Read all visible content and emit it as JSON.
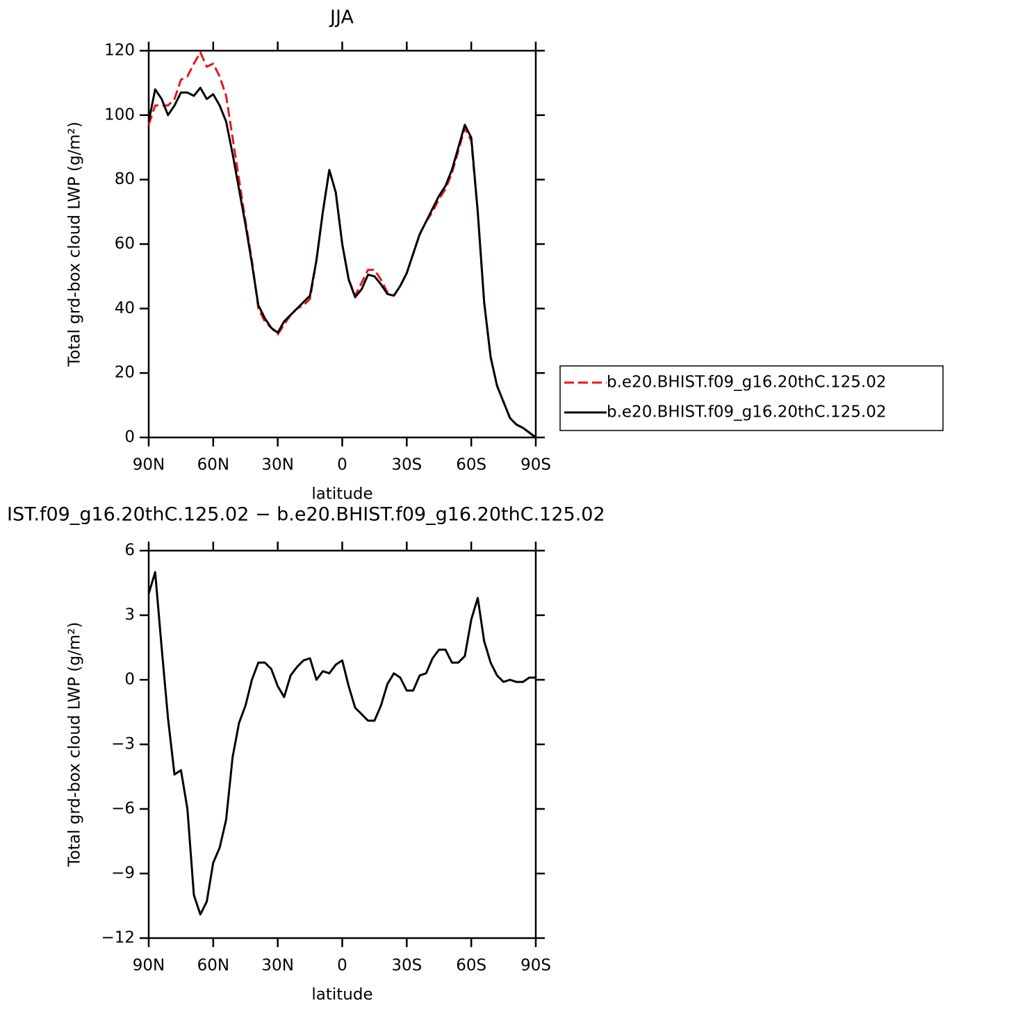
{
  "chart_data": [
    {
      "type": "line",
      "title": "JJA",
      "xlabel": "latitude",
      "ylabel": "Total grd-box cloud LWP (g/m²)",
      "x": [
        90,
        87,
        84,
        81,
        78,
        75,
        72,
        69,
        66,
        63,
        60,
        57,
        54,
        51,
        48,
        45,
        42,
        39,
        36,
        33,
        30,
        27,
        24,
        21,
        18,
        15,
        12,
        9,
        6,
        3,
        0,
        -3,
        -6,
        -9,
        -12,
        -15,
        -18,
        -21,
        -24,
        -27,
        -30,
        -33,
        -36,
        -39,
        -42,
        -45,
        -48,
        -51,
        -54,
        -57,
        -60,
        -63,
        -66,
        -69,
        -72,
        -75,
        -78,
        -81,
        -84,
        -87,
        -90
      ],
      "xlim": [
        90,
        -90
      ],
      "xticks": [
        {
          "value": 90,
          "label": "90N"
        },
        {
          "value": 60,
          "label": "60N"
        },
        {
          "value": 30,
          "label": "30N"
        },
        0,
        {
          "value": -30,
          "label": "30S"
        },
        {
          "value": -60,
          "label": "60S"
        },
        {
          "value": -90,
          "label": "90S"
        }
      ],
      "ylim": [
        0,
        120
      ],
      "yticks": [
        0,
        20,
        40,
        60,
        80,
        100,
        120
      ],
      "series": [
        {
          "name": "b.e20.BHIST.f09_g16.20thC.125.02",
          "color": "#e8141c",
          "line_style": "dashed",
          "values": [
            97,
            103,
            103,
            103,
            105,
            111,
            112,
            116,
            119.5,
            115,
            116,
            112,
            106,
            93,
            80,
            67,
            55,
            40,
            36,
            34,
            32,
            35,
            38,
            40,
            41,
            43,
            55,
            70,
            83,
            76,
            60,
            49,
            44,
            48,
            52,
            52,
            49,
            45,
            44,
            47,
            51,
            57,
            63,
            67,
            70,
            74,
            77,
            82,
            89,
            96,
            92,
            70,
            42,
            25,
            16,
            11,
            6,
            4,
            3,
            1.5,
            0
          ]
        },
        {
          "name": "b.e20.BHIST.f09_g16.20thC.125.02",
          "color": "#000000",
          "line_style": "solid",
          "values": [
            98,
            108,
            105,
            100,
            103,
            107,
            107,
            106,
            108.5,
            105,
            106.5,
            103,
            98,
            88,
            77,
            66,
            54,
            41,
            37,
            34,
            32.5,
            36,
            38,
            40,
            42,
            44,
            55,
            70,
            83,
            76,
            60,
            49,
            43.5,
            46,
            50.5,
            50,
            47.5,
            44.5,
            44,
            47,
            51,
            57,
            63,
            67,
            71,
            75,
            78,
            83,
            90,
            97,
            93,
            70,
            42,
            25,
            16,
            11,
            6,
            4,
            3,
            1.5,
            0
          ]
        }
      ]
    },
    {
      "type": "line",
      "title": "IST.f09_g16.20thC.125.02 − b.e20.BHIST.f09_g16.20thC.125.02",
      "xlabel": "latitude",
      "ylabel": "Total grd-box cloud LWP (g/m²)",
      "x": [
        90,
        87,
        84,
        81,
        78,
        75,
        72,
        69,
        66,
        63,
        60,
        57,
        54,
        51,
        48,
        45,
        42,
        39,
        36,
        33,
        30,
        27,
        24,
        21,
        18,
        15,
        12,
        9,
        6,
        3,
        0,
        -3,
        -6,
        -9,
        -12,
        -15,
        -18,
        -21,
        -24,
        -27,
        -30,
        -33,
        -36,
        -39,
        -42,
        -45,
        -48,
        -51,
        -54,
        -57,
        -60,
        -63,
        -66,
        -69,
        -72,
        -75,
        -78,
        -81,
        -84,
        -87,
        -90
      ],
      "xlim": [
        90,
        -90
      ],
      "xticks": [
        {
          "value": 90,
          "label": "90N"
        },
        {
          "value": 60,
          "label": "60N"
        },
        {
          "value": 30,
          "label": "30N"
        },
        0,
        {
          "value": -30,
          "label": "30S"
        },
        {
          "value": -60,
          "label": "60S"
        },
        {
          "value": -90,
          "label": "90S"
        }
      ],
      "ylim": [
        -12,
        6
      ],
      "yticks": [
        {
          "value": -12,
          "label": "−12"
        },
        {
          "value": -9,
          "label": "−9"
        },
        {
          "value": -6,
          "label": "−6"
        },
        {
          "value": -3,
          "label": "−3"
        },
        0,
        3,
        6
      ],
      "color": "#000000",
      "values": [
        4.0,
        5.0,
        1.5,
        -1.8,
        -4.4,
        -4.2,
        -6.0,
        -10.0,
        -10.9,
        -10.3,
        -8.5,
        -7.8,
        -6.5,
        -3.6,
        -2.0,
        -1.2,
        0,
        0.8,
        0.8,
        0.5,
        -0.3,
        -0.8,
        0.2,
        0.6,
        0.9,
        1.0,
        0,
        0.4,
        0.3,
        0.7,
        0.9,
        -0.3,
        -1.3,
        -1.6,
        -1.9,
        -1.9,
        -1.2,
        -0.2,
        0.3,
        0.1,
        -0.5,
        -0.5,
        0.2,
        0.3,
        1.0,
        1.4,
        1.4,
        0.8,
        0.8,
        1.1,
        2.8,
        3.8,
        1.8,
        0.8,
        0.2,
        -0.1,
        0,
        -0.1,
        -0.1,
        0.1,
        0.1
      ]
    }
  ]
}
